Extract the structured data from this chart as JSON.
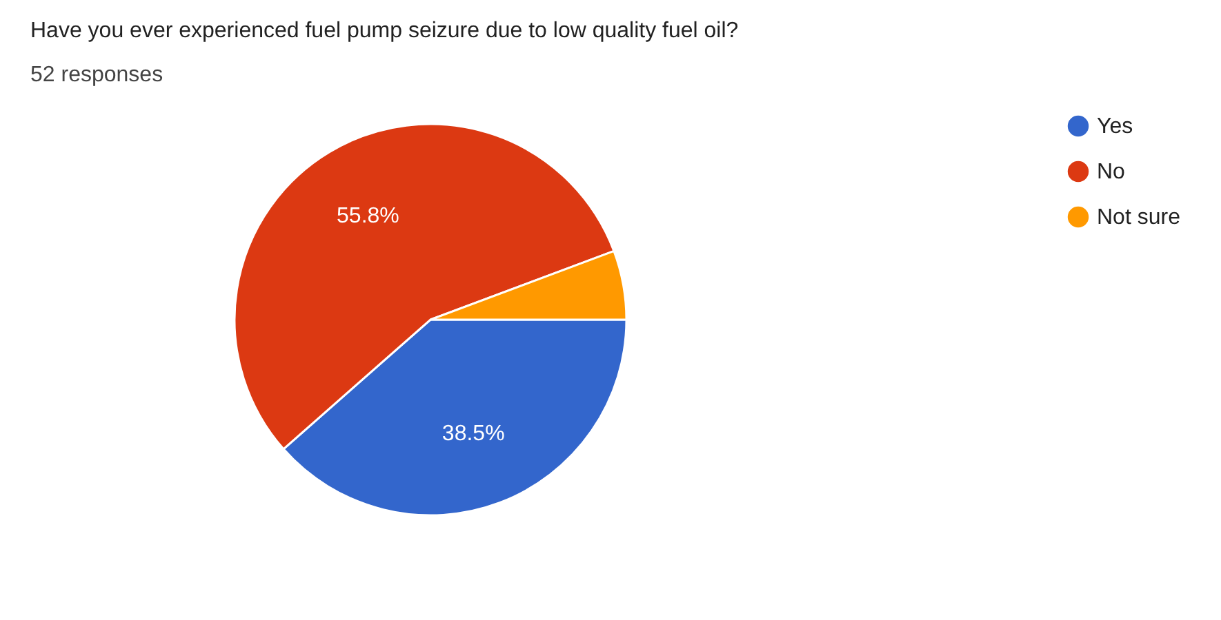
{
  "chart_data": {
    "type": "pie",
    "title": "Have you ever experienced fuel pump seizure due to low quality fuel oil?",
    "subtitle": "52 responses",
    "categories": [
      "Yes",
      "No",
      "Not sure"
    ],
    "values": [
      38.5,
      55.8,
      5.7
    ],
    "colors": [
      "#3366cc",
      "#dc3912",
      "#ff9900"
    ],
    "value_labels": [
      "38.5%",
      "55.8%",
      null
    ],
    "legend": "right"
  }
}
